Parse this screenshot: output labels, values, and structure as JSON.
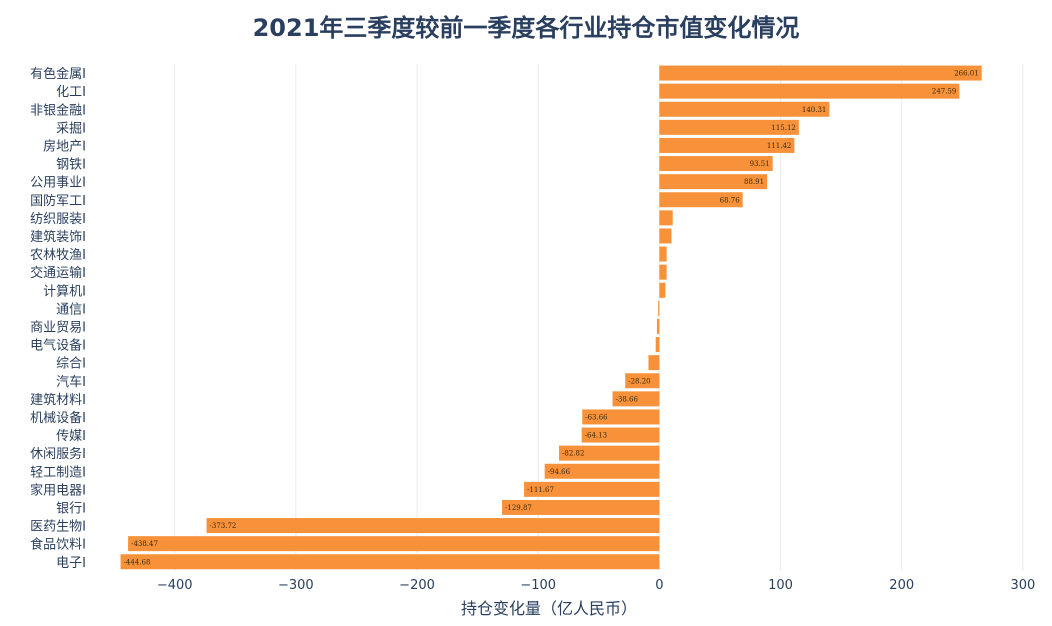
{
  "chart_data": {
    "type": "bar",
    "orientation": "horizontal",
    "title": "2021年三季度较前一季度各行业持仓市值变化情况",
    "xlabel": "持仓变化量（亿人民币）",
    "ylabel": "",
    "xlim": [
      -460,
      310
    ],
    "xticks": [
      -400,
      -300,
      -200,
      -100,
      0,
      100,
      200,
      300
    ],
    "xtick_labels": [
      "−400",
      "−300",
      "−200",
      "−100",
      "0",
      "100",
      "200",
      "300"
    ],
    "grid": true,
    "legend": false,
    "bar_color": "#f7923a",
    "categories": [
      "有色金属I",
      "化工I",
      "非银金融I",
      "采掘I",
      "房地产I",
      "钢铁I",
      "公用事业I",
      "国防军工I",
      "纺织服装I",
      "建筑装饰I",
      "农林牧渔I",
      "交通运输I",
      "计算机I",
      "通信I",
      "商业贸易I",
      "电气设备I",
      "综合I",
      "汽车I",
      "建筑材料I",
      "机械设备I",
      "传媒I",
      "休闲服务I",
      "轻工制造I",
      "家用电器I",
      "银行I",
      "医药生物I",
      "食品饮料I",
      "电子I"
    ],
    "values": [
      266.01,
      247.59,
      140.31,
      115.12,
      111.42,
      93.51,
      88.91,
      68.76,
      11,
      10,
      6,
      6,
      5,
      -1,
      -2,
      -3,
      -9,
      -28.2,
      -38.66,
      -63.66,
      -64.13,
      -82.82,
      -94.66,
      -111.67,
      -129.87,
      -373.72,
      -438.47,
      -444.68
    ],
    "value_labels": [
      "266.01",
      "247.59",
      "140.31",
      "115.12",
      "111.42",
      "93.51",
      "88.91",
      "68.76",
      "",
      "",
      "",
      "",
      "",
      "",
      "",
      "",
      "",
      "-28.20",
      "-38.66",
      "-63.66",
      "-64.13",
      "-82.82",
      "-94.66",
      "-111.67",
      "-129.87",
      "-373.72",
      "-438.47",
      "-444.68"
    ]
  }
}
